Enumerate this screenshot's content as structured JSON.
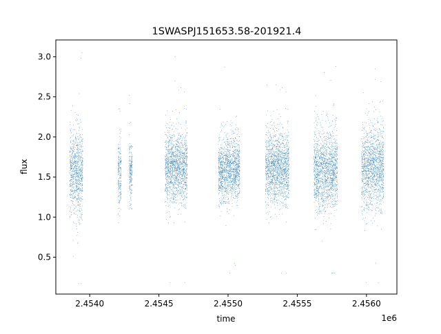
{
  "chart_data": {
    "type": "scatter",
    "title": "1SWASPJ151653.58-201921.4",
    "xlabel": "time",
    "ylabel": "flux",
    "x_offset_label": "1e6",
    "xlim": [
      2453755,
      2456220
    ],
    "ylim": [
      0.04,
      3.21
    ],
    "x_ticks": [
      2.454,
      2.4545,
      2.455,
      2.4555,
      2.456
    ],
    "x_tick_labels": [
      "2.4540",
      "2.4545",
      "2.4550",
      "2.4555",
      "2.4560"
    ],
    "y_ticks": [
      0.5,
      1.0,
      1.5,
      2.0,
      2.5,
      3.0
    ],
    "y_tick_labels": [
      "0.5",
      "1.0",
      "1.5",
      "2.0",
      "2.5",
      "3.0"
    ],
    "grid": false,
    "legend": "none",
    "point_color": "#1f77b4",
    "series": [
      {
        "seasons": [
          {
            "x": [
              2453855,
              2453950
            ],
            "center": 1.55,
            "spread": 0.26,
            "extremes": [
              0.17,
              3.05
            ]
          },
          {
            "x": [
              2454205,
              2454228
            ],
            "center": 1.55,
            "spread": 0.22,
            "extremes": [
              0.93,
              2.35
            ]
          },
          {
            "x": [
              2454285,
              2454308
            ],
            "center": 1.58,
            "spread": 0.18,
            "extremes": [
              1.1,
              2.52
            ]
          },
          {
            "x": [
              2454545,
              2454705
            ],
            "center": 1.62,
            "spread": 0.22,
            "extremes": [
              0.18,
              3.0
            ]
          },
          {
            "x": [
              2454930,
              2455085
            ],
            "center": 1.6,
            "spread": 0.2,
            "extremes": [
              0.3,
              2.87
            ]
          },
          {
            "x": [
              2455270,
              2455440
            ],
            "center": 1.62,
            "spread": 0.22,
            "extremes": [
              0.3,
              2.65
            ]
          },
          {
            "x": [
              2455620,
              2455790
            ],
            "center": 1.58,
            "spread": 0.25,
            "extremes": [
              0.3,
              2.88
            ]
          },
          {
            "x": [
              2455965,
              2456125
            ],
            "center": 1.62,
            "spread": 0.25,
            "extremes": [
              0.18,
              2.85
            ]
          }
        ]
      }
    ]
  }
}
